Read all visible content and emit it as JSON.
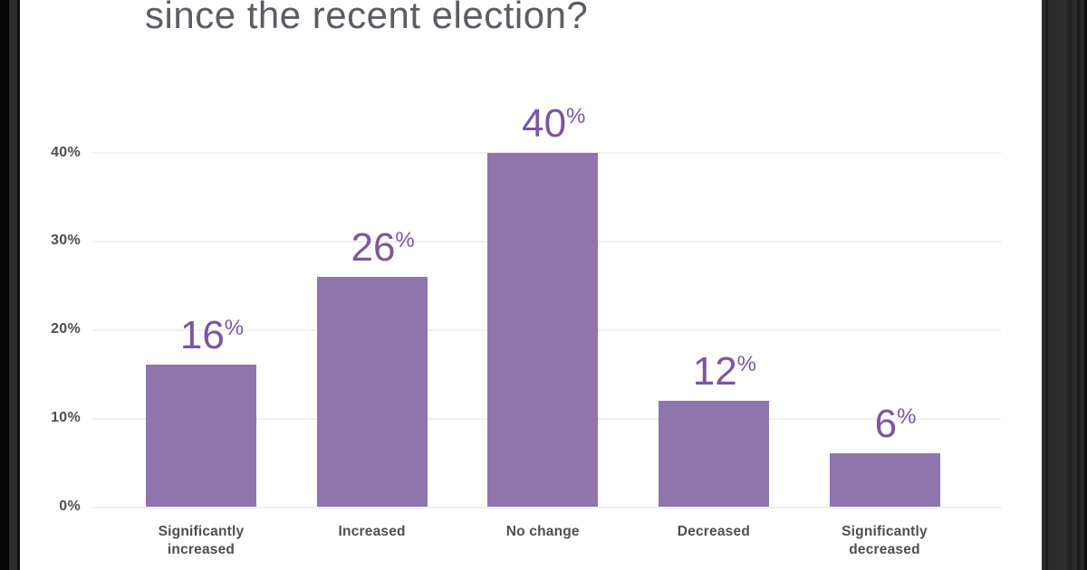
{
  "title": "since the recent election?",
  "chart_data": {
    "type": "bar",
    "title": "since the recent election?",
    "categories": [
      "Significantly increased",
      "Increased",
      "No change",
      "Decreased",
      "Significantly decreased"
    ],
    "values": [
      16,
      26,
      40,
      12,
      6
    ],
    "data_labels": [
      "16%",
      "26%",
      "40%",
      "12%",
      "6%"
    ],
    "value_suffix": "%",
    "xlabel": "",
    "ylabel": "",
    "ytick_labels": [
      "0%",
      "10%",
      "20%",
      "30%",
      "40%"
    ],
    "ytick_values": [
      0,
      10,
      20,
      30,
      40
    ],
    "ylim": [
      0,
      40
    ],
    "grid": true,
    "legend": false,
    "bar_color": "#8e76ad",
    "value_label_color": "#7a56a4",
    "axis_text_color": "#4d4e50",
    "gridline_color": "#efefef",
    "title_color": "#5b5d64"
  },
  "frame": {
    "left_edge_color": "#060606",
    "right_edge_color": "#2d2d2d"
  }
}
